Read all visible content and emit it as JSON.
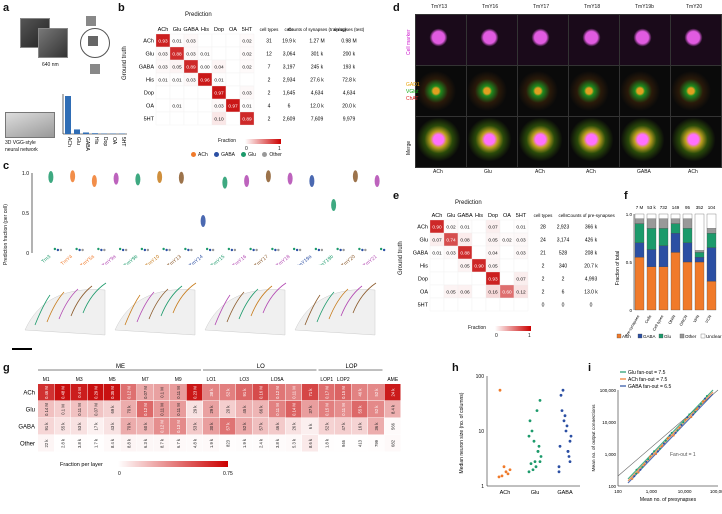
{
  "panels": {
    "a": "a",
    "b": "b",
    "c": "c",
    "d": "d",
    "e": "e",
    "f": "f",
    "g": "g",
    "h": "h",
    "i": "i"
  },
  "panel_a": {
    "voxel_size": "640 nm",
    "network_label_1": "3D VGG-style",
    "network_label_2": "neural network",
    "bar_categories": [
      "ACh",
      "Glu",
      "GABA",
      "His",
      "Dop",
      "OA",
      "5HT"
    ],
    "bar_values": [
      1.0,
      0.12,
      0.04,
      0.02,
      0.01,
      0.01,
      0.01
    ],
    "bar_color": "#2f6db5"
  },
  "panel_b": {
    "title": "Prediction",
    "row_axis": "Ground truth",
    "cols": [
      "ACh",
      "Glu",
      "GABA",
      "His",
      "Dop",
      "OA",
      "5HT"
    ],
    "rows": [
      "ACh",
      "Glu",
      "GABA",
      "His",
      "Dop",
      "OA",
      "5HT"
    ],
    "cells": [
      [
        "0.93",
        "0.01",
        "0.03",
        "",
        "",
        "",
        "0.02"
      ],
      [
        "0.03",
        "0.88",
        "0.03",
        "0.01",
        "",
        "",
        "0.02"
      ],
      [
        "0.03",
        "0.05",
        "0.89",
        "0.00",
        "0.04",
        "",
        "0.02"
      ],
      [
        "0.01",
        "0.01",
        "0.03",
        "0.96",
        "0.01",
        "",
        ""
      ],
      [
        "",
        "",
        "",
        "",
        "0.97",
        "",
        "0.03"
      ],
      [
        "",
        "0.01",
        "",
        "",
        "0.03",
        "0.97",
        "0.01"
      ],
      [
        "",
        "",
        "",
        "",
        "0.10",
        "",
        "0.89"
      ]
    ],
    "stats_header": [
      "cell types",
      "cells",
      "Counts of synapses (training)",
      "synapses (test)"
    ],
    "stats": [
      [
        "31",
        "19.9 k",
        "1.27 M",
        "0.98 M"
      ],
      [
        "12",
        "3,064",
        "301 k",
        "200 k"
      ],
      [
        "7",
        "3,197",
        "245 k",
        "193 k"
      ],
      [
        "2",
        "2,934",
        "27.6 k",
        "72.8 k"
      ],
      [
        "2",
        "1,645",
        "4,634",
        "4,634"
      ],
      [
        "4",
        "6",
        "12.0 k",
        "20.0 k"
      ],
      [
        "2",
        "2,609",
        "7,609",
        "9,979"
      ]
    ],
    "legend": [
      "ACh",
      "GABA",
      "Glu",
      "Other"
    ],
    "legend_colors": [
      "#f07a2a",
      "#2b4fa3",
      "#1c9a6b",
      "#999999"
    ],
    "colorbar_label": "Fraction",
    "colorbar_min": "0",
    "colorbar_max": "1"
  },
  "panel_c": {
    "yaxis": "Prediction fraction (per cell)",
    "yticks": [
      "1.0",
      "0.5",
      "0"
    ],
    "cell_types": [
      "Tm3",
      "TmY4",
      "TmY5a",
      "TmY9a",
      "TmY9b",
      "TmY10",
      "TmY13",
      "TmY14",
      "TmY15",
      "TmY16",
      "TmY17",
      "TmY18",
      "TmY19a",
      "TmY19b",
      "TmY20",
      "TmY21"
    ],
    "type_colors": [
      "#1c9a6b",
      "#f07a2a",
      "#f07a2a",
      "#b248b2",
      "#1c9a6b",
      "#c77b1a",
      "#8b5a2b",
      "#2b4fa3",
      "#1c9a6b",
      "#b248b2",
      "#8b5a2b",
      "#b248b2",
      "#2b4fa3",
      "#1c9a6b",
      "#8b5a2b",
      "#b248b2"
    ],
    "top_values": [
      0.95,
      0.96,
      0.9,
      0.93,
      0.92,
      0.95,
      0.94,
      0.4,
      0.88,
      0.9,
      0.96,
      0.93,
      0.9,
      0.6,
      0.96,
      0.9
    ]
  },
  "panel_d": {
    "columns": [
      "TmY13",
      "TmY16",
      "TmY17",
      "TmY18",
      "TmY19b",
      "TmY20"
    ],
    "rows": [
      "Cell marker",
      "GAD1 VGlut ChAT",
      "Merge"
    ],
    "row_label_cell": "Cell marker",
    "label_gad": "GAD1",
    "label_vglut": "VGlut",
    "label_chat": "ChAT",
    "row_label_merge": "Merge",
    "transmitters": [
      "ACh",
      "Glu",
      "ACh",
      "ACh",
      "GABA",
      "ACh"
    ]
  },
  "panel_e": {
    "title": "Prediction",
    "row_axis": "Ground truth",
    "cols": [
      "ACh",
      "Glu",
      "GABA",
      "His",
      "Dop",
      "OA",
      "5HT"
    ],
    "rows": [
      "ACh",
      "Glu",
      "GABA",
      "His",
      "Dop",
      "OA",
      "5HT"
    ],
    "cells": [
      [
        "0.90",
        "0.02",
        "0.01",
        "",
        "0.07",
        "",
        "0.01"
      ],
      [
        "0.07",
        "0.74",
        "0.08",
        "",
        "0.05",
        "0.02",
        "0.03"
      ],
      [
        "0.01",
        "0.03",
        "0.88",
        "",
        "0.04",
        "",
        "0.03"
      ],
      [
        "",
        "",
        "0.05",
        "0.90",
        "0.05",
        "",
        ""
      ],
      [
        "",
        "",
        "",
        "",
        "0.93",
        "",
        "0.07"
      ],
      [
        "",
        "0.05",
        "0.06",
        "",
        "0.16",
        "0.60",
        "0.12"
      ],
      [
        "",
        "",
        "",
        "",
        "",
        "",
        ""
      ]
    ],
    "stats_header": [
      "cell types",
      "cells",
      "Counts of pre-synapses"
    ],
    "stats": [
      [
        "28",
        "2,923",
        "366 k"
      ],
      [
        "24",
        "3,174",
        "426 k"
      ],
      [
        "21",
        "528",
        "208 k"
      ],
      [
        "2",
        "340",
        "20.7 k"
      ],
      [
        "2",
        "2",
        "4,993"
      ],
      [
        "2",
        "6",
        "13.0 k"
      ],
      [
        "0",
        "0",
        "0"
      ]
    ],
    "colorbar_label": "Fraction",
    "colorbar_min": "0",
    "colorbar_max": "1"
  },
  "panel_f": {
    "top_counts": [
      "7 M",
      "53 k",
      "732",
      "149",
      "95",
      "352",
      "104"
    ],
    "categories": [
      "Pre-synapses",
      "Cells",
      "Cell types",
      "ONIN",
      "ONCN",
      "VPN",
      "VCN"
    ],
    "xlabel_group": "Cell types",
    "yaxis": "Fraction of total",
    "yticks": [
      "1.0",
      "0.5",
      "0"
    ],
    "series": [
      {
        "name": "ACh",
        "color": "#f07a2a",
        "values": [
          0.55,
          0.45,
          0.45,
          0.6,
          0.5,
          0.5,
          0.3
        ]
      },
      {
        "name": "GABA",
        "color": "#2b4fa3",
        "values": [
          0.15,
          0.18,
          0.22,
          0.2,
          0.2,
          0.05,
          0.35
        ]
      },
      {
        "name": "Glu",
        "color": "#1c9a6b",
        "values": [
          0.2,
          0.22,
          0.18,
          0.1,
          0.15,
          0.05,
          0.15
        ]
      },
      {
        "name": "Other",
        "color": "#999999",
        "values": [
          0.05,
          0.1,
          0.1,
          0.05,
          0.1,
          0.02,
          0.05
        ]
      },
      {
        "name": "Unclear",
        "color": "#ffffff",
        "values": [
          0.05,
          0.05,
          0.05,
          0.05,
          0.05,
          0.38,
          0.15
        ]
      }
    ]
  },
  "panel_g": {
    "groups": [
      "ME",
      "LO",
      "LOP"
    ],
    "layers": [
      "M1",
      "M3",
      "M5",
      "M7",
      "M9",
      "LO1",
      "LO3",
      "LO5A",
      "LOP1",
      "LOP2",
      "AME"
    ],
    "layers_all": [
      "M1",
      "M2",
      "M3",
      "M4",
      "M5",
      "M6",
      "M7",
      "M8",
      "M9",
      "M10",
      "LO1",
      "LO2",
      "LO3",
      "LO4",
      "LO5A",
      "LO5B",
      "LO6",
      "LOP1",
      "LOP2",
      "LOP3",
      "LOP4",
      "AME"
    ],
    "rows": [
      "ACh",
      "Glu",
      "GABA",
      "Other"
    ],
    "values": [
      [
        "0.46 M",
        "0.48 M",
        "0.4 M",
        "0.29 M",
        "0.35 M",
        "0.12 M",
        "0.07 M",
        "0.1 M",
        "0.11 M",
        "0.23 M",
        "38 k",
        "52 k",
        "91 k",
        "0.16 M",
        "0.12 M",
        "0.11 M",
        "71 k",
        "0.17 M",
        "0.15 M",
        "46 k",
        "52 k",
        "24 k"
      ],
      [
        "0.14 M",
        "0.1 M",
        "0.11 M",
        "0.07 M",
        "69 k",
        "70 k",
        "0.12 M",
        "0.11 M",
        "0.11 M",
        "29 k",
        "29 k",
        "20 k",
        "45 k",
        "66 k",
        "0.11 M",
        "0.14 M",
        "37 k",
        "0.15 M",
        "0.11 M",
        "55 k",
        "52 k",
        "8.4 k"
      ],
      [
        "91 k",
        "55 k",
        "53 k",
        "17 k",
        "43 k",
        "70 k",
        "60 k",
        "0.12 M",
        "0.13 M",
        "53 k",
        "30 k",
        "57 k",
        "52 k",
        "57 k",
        "46 k",
        "26 k",
        "6 k",
        "52 k",
        "47 k",
        "16 k",
        "36 k",
        "566"
      ],
      [
        "22 k",
        "2.8 k",
        "3.8 k",
        "1.7 k",
        "8.4 k",
        "8.8 k",
        "6.3 k",
        "8.7 k",
        "6.7 k",
        "4.8 k",
        "1.9 k",
        "823",
        "1.9 k",
        "2.4 k",
        "3.8 k",
        "5.3 k",
        "8.6 k",
        "1.8 k",
        "946",
        "413",
        "799",
        "682"
      ]
    ],
    "colorbar_label": "Fraction per layer",
    "colorbar_min": "0",
    "colorbar_max": "0.75"
  },
  "panel_h": {
    "yaxis": "Median neuron size (no. of columns)",
    "yticks": [
      "1",
      "10",
      "100"
    ],
    "categories": [
      "ACh",
      "Glu",
      "GABA"
    ],
    "colors": [
      "#f07a2a",
      "#1c9a6b",
      "#2b4fa3"
    ]
  },
  "panel_i": {
    "legend": [
      "Glu fan-out = 7.5",
      "ACh fan-out = 7.5",
      "GABA fan-out = 6.5"
    ],
    "legend_colors": [
      "#1c9a6b",
      "#f07a2a",
      "#2b4fa3"
    ],
    "annotation": "Fan-out = 1",
    "xlabel": "Mean no. of presynapses",
    "ylabel": "Mean no. of output connections",
    "xticks": [
      "100",
      "1,000",
      "10,000",
      "100,000"
    ],
    "yticks": [
      "100",
      "1,000",
      "10,000",
      "100,000"
    ]
  }
}
